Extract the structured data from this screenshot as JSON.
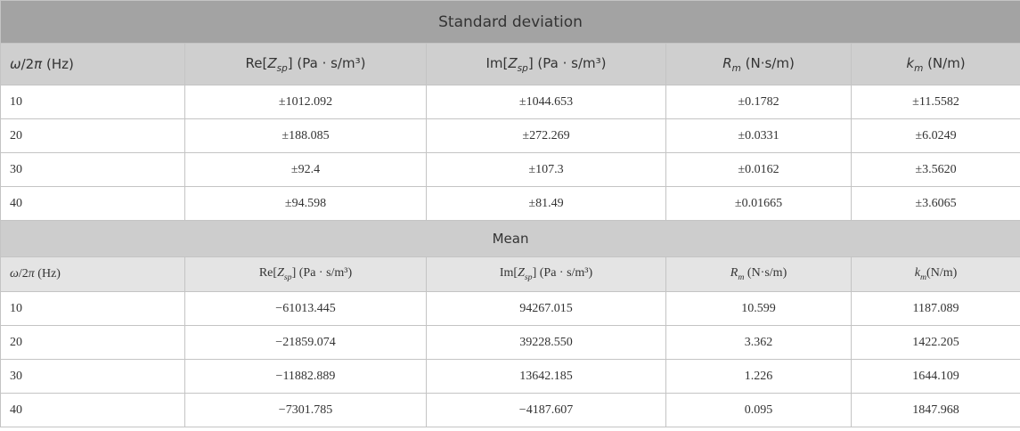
{
  "sections": [
    {
      "title": "Standard deviation",
      "header": [
        [
          "ω",
          "/2",
          "π",
          " (Hz)"
        ],
        [
          "Re[",
          "Z",
          "sp",
          "] (Pa · s/m³)"
        ],
        [
          "Im[",
          "Z",
          "sp",
          "] (Pa · s/m³)"
        ],
        [
          "R",
          "m",
          " (N·s/m)"
        ],
        [
          "k",
          "m",
          " (N/m)"
        ]
      ],
      "rows": [
        [
          "10",
          "±1012.092",
          "±1044.653",
          "±0.1782",
          "±11.5582"
        ],
        [
          "20",
          "±188.085",
          "±272.269",
          "±0.0331",
          "±6.0249"
        ],
        [
          "30",
          "±92.4",
          "±107.3",
          "±0.0162",
          "±3.5620"
        ],
        [
          "40",
          "±94.598",
          "±81.49",
          "±0.01665",
          "±3.6065"
        ]
      ]
    },
    {
      "title": "Mean",
      "header": [
        [
          "ω",
          "/2",
          "π",
          " (Hz)"
        ],
        [
          "Re[",
          "Z",
          "sp",
          "] (Pa · s/m³)"
        ],
        [
          "Im[",
          "Z",
          "sp",
          "] (Pa · s/m³)"
        ],
        [
          "R",
          "m",
          " (N·s/m)"
        ],
        [
          "k",
          "m",
          "(N/m)"
        ]
      ],
      "rows": [
        [
          "10",
          "−61013.445",
          "94267.015",
          "10.599",
          "1187.089"
        ],
        [
          "20",
          "−21859.074",
          "39228.550",
          "3.362",
          "1422.205"
        ],
        [
          "30",
          "−11882.889",
          "13642.185",
          "1.226",
          "1644.109"
        ],
        [
          "40",
          "−7301.785",
          "−4187.607",
          "0.095",
          "1847.968"
        ]
      ]
    }
  ]
}
